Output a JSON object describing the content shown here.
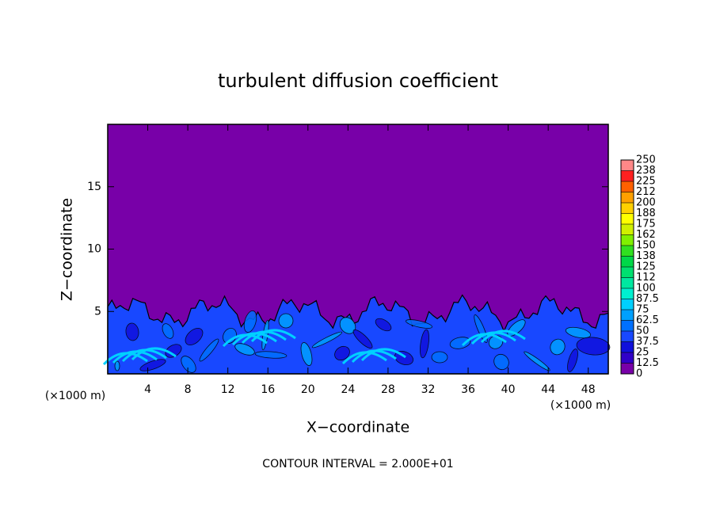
{
  "chart_data": {
    "type": "contour",
    "title": "turbulent diffusion coefficient",
    "x_label": "X−coordinate",
    "y_label": "Z−coordinate",
    "x_unit": "(×1000 m)",
    "y_unit": "(×1000 m)",
    "note": "CONTOUR INTERVAL = 2.000E+01",
    "xlim": [
      0,
      50
    ],
    "xticks": [
      4,
      8,
      12,
      16,
      20,
      24,
      28,
      32,
      36,
      40,
      44,
      48
    ],
    "ylim": [
      0,
      20
    ],
    "yticks": [
      5,
      10,
      15
    ],
    "colorbar": {
      "levels": [
        0,
        12.5,
        25,
        37.5,
        50,
        62.5,
        75,
        87.5,
        100,
        {
          "value": 112.5,
          "label": "112"
        },
        125,
        {
          "value": 137.5,
          "label": "138"
        },
        150,
        {
          "value": 162.5,
          "label": "162"
        },
        175,
        {
          "value": 187.5,
          "label": "188"
        },
        200,
        {
          "value": 212.5,
          "label": "212"
        },
        225,
        {
          "value": 237.5,
          "label": "238"
        },
        250
      ],
      "colors": [
        "#7800a8",
        "#3000c8",
        "#1010dc",
        "#1848ff",
        "#0070ff",
        "#00a0ff",
        "#00d0ff",
        "#00f0d0",
        "#00e8a0",
        "#00e070",
        "#00d848",
        "#30e020",
        "#80f000",
        "#d0f000",
        "#ffff00",
        "#ffd000",
        "#ffa000",
        "#ff6000",
        "#ff2020",
        "#ff8888"
      ]
    }
  }
}
